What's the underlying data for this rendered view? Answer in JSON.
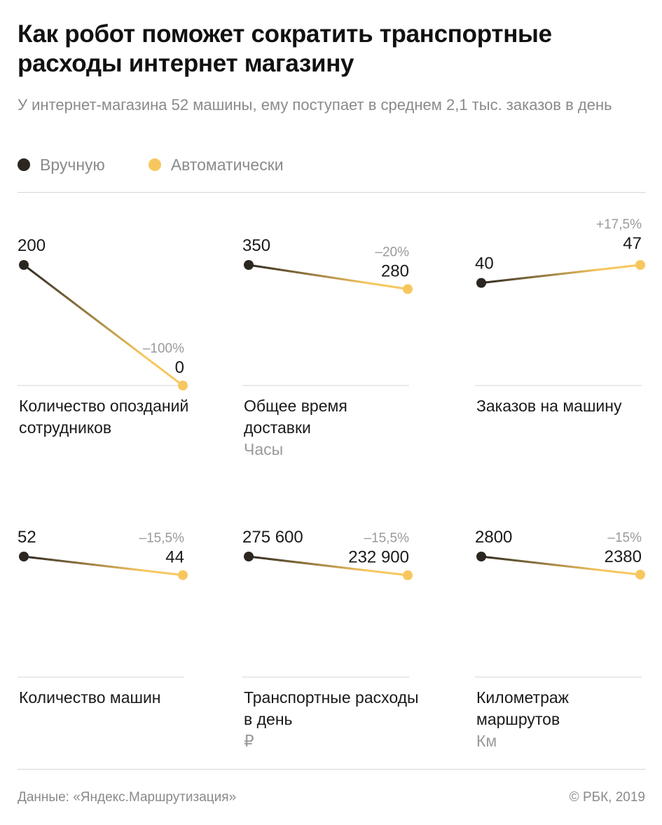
{
  "header": {
    "title": "Как робот поможет сократить транспортные расходы интернет магазину",
    "subtitle": "У интернет-магазина 52 машины, ему поступает в среднем 2,1 тыс. заказов в день"
  },
  "legend": [
    {
      "label": "Вручную",
      "color": "#2b2620"
    },
    {
      "label": "Автоматически",
      "color": "#f7c75f"
    }
  ],
  "footer": {
    "source": "Данные: «Яндекс.Маршрутизация»",
    "copyright": "© РБК, 2019"
  },
  "chart_data": [
    {
      "type": "line",
      "title": "Количество опозданий сотрудников",
      "unit": "",
      "series": [
        "Вручную",
        "Автоматически"
      ],
      "values": [
        200,
        0
      ],
      "value_labels": [
        "200",
        "0"
      ],
      "change": "–100%",
      "ylim": [
        0,
        200
      ]
    },
    {
      "type": "line",
      "title": "Общее время доставки",
      "unit": "Часы",
      "series": [
        "Вручную",
        "Автоматически"
      ],
      "values": [
        350,
        280
      ],
      "value_labels": [
        "350",
        "280"
      ],
      "change": "–20%",
      "ylim": [
        0,
        350
      ]
    },
    {
      "type": "line",
      "title": "Заказов на машину",
      "unit": "",
      "series": [
        "Вручную",
        "Автоматически"
      ],
      "values": [
        40,
        47
      ],
      "value_labels": [
        "40",
        "47"
      ],
      "change": "+17,5%",
      "ylim": [
        0,
        47
      ]
    },
    {
      "type": "line",
      "title": "Количество машин",
      "unit": "",
      "series": [
        "Вручную",
        "Автоматически"
      ],
      "values": [
        52,
        44
      ],
      "value_labels": [
        "52",
        "44"
      ],
      "change": "–15,5%",
      "ylim": [
        0,
        52
      ]
    },
    {
      "type": "line",
      "title": "Транспортные расходы в день",
      "unit": "₽",
      "series": [
        "Вручную",
        "Автоматически"
      ],
      "values": [
        275600,
        232900
      ],
      "value_labels": [
        "275 600",
        "232 900"
      ],
      "change": "–15,5%",
      "ylim": [
        0,
        275600
      ]
    },
    {
      "type": "line",
      "title": "Километраж маршрутов",
      "unit": "Км",
      "series": [
        "Вручную",
        "Автоматически"
      ],
      "values": [
        2800,
        2380
      ],
      "value_labels": [
        "2800",
        "2380"
      ],
      "change": "–15%",
      "ylim": [
        0,
        2800
      ]
    }
  ]
}
